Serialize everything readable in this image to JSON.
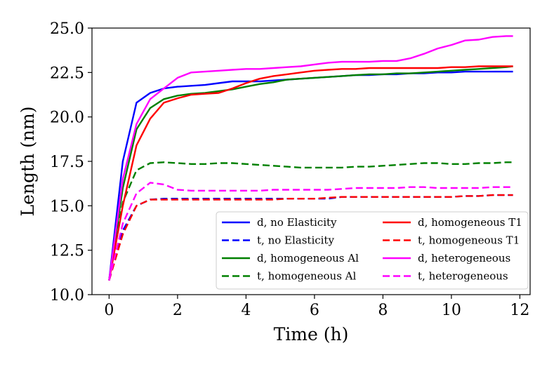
{
  "chart_data": {
    "type": "line",
    "title": "",
    "xlabel": "Time (h)",
    "ylabel": "Length (nm)",
    "xlim": [
      -0.5,
      12.3
    ],
    "ylim": [
      10.0,
      25.0
    ],
    "xticks": [
      0,
      2,
      4,
      6,
      8,
      10,
      12
    ],
    "xtick_labels": [
      "0",
      "2",
      "4",
      "6",
      "8",
      "10",
      "12"
    ],
    "yticks": [
      10.0,
      12.5,
      15.0,
      17.5,
      20.0,
      22.5,
      25.0
    ],
    "ytick_labels": [
      "10.0",
      "12.5",
      "15.0",
      "17.5",
      "20.0",
      "22.5",
      "25.0"
    ],
    "grid": false,
    "legend_position": "bottom-right",
    "x": [
      0,
      0.4,
      0.8,
      1.2,
      1.6,
      2.0,
      2.4,
      2.8,
      3.2,
      3.6,
      4.0,
      4.4,
      4.8,
      5.2,
      5.6,
      6.0,
      6.4,
      6.8,
      7.2,
      7.6,
      8.0,
      8.4,
      8.8,
      9.2,
      9.6,
      10.0,
      10.4,
      10.8,
      11.2,
      11.6,
      11.8
    ],
    "series": [
      {
        "name": "d, no Elasticity",
        "color": "#0000ff",
        "dash": "solid",
        "values": [
          10.8,
          17.5,
          20.8,
          21.35,
          21.6,
          21.7,
          21.75,
          21.8,
          21.9,
          22.0,
          22.0,
          22.0,
          22.05,
          22.1,
          22.15,
          22.2,
          22.25,
          22.3,
          22.35,
          22.35,
          22.4,
          22.4,
          22.45,
          22.45,
          22.5,
          22.5,
          22.55,
          22.55,
          22.55,
          22.55,
          22.55
        ]
      },
      {
        "name": "t, no Elasticity",
        "color": "#0000ff",
        "dash": "dashed",
        "values": [
          10.8,
          13.6,
          15.0,
          15.35,
          15.4,
          15.4,
          15.4,
          15.4,
          15.4,
          15.4,
          15.4,
          15.4,
          15.4,
          15.4,
          15.4,
          15.4,
          15.4,
          15.5,
          15.5,
          15.5,
          15.5,
          15.5,
          15.5,
          15.5,
          15.5,
          15.5,
          15.55,
          15.55,
          15.6,
          15.6,
          15.6
        ]
      },
      {
        "name": "d, homogeneous Al",
        "color": "#008000",
        "dash": "solid",
        "values": [
          10.8,
          16.0,
          19.3,
          20.5,
          21.0,
          21.2,
          21.3,
          21.35,
          21.45,
          21.55,
          21.7,
          21.85,
          21.95,
          22.1,
          22.15,
          22.2,
          22.25,
          22.3,
          22.35,
          22.4,
          22.4,
          22.45,
          22.45,
          22.5,
          22.55,
          22.6,
          22.65,
          22.7,
          22.75,
          22.8,
          22.85
        ]
      },
      {
        "name": "t, homogeneous Al",
        "color": "#008000",
        "dash": "dashed",
        "values": [
          10.8,
          15.2,
          17.0,
          17.4,
          17.45,
          17.4,
          17.35,
          17.35,
          17.4,
          17.4,
          17.35,
          17.3,
          17.25,
          17.2,
          17.15,
          17.15,
          17.15,
          17.15,
          17.2,
          17.2,
          17.25,
          17.3,
          17.35,
          17.4,
          17.4,
          17.35,
          17.35,
          17.4,
          17.4,
          17.45,
          17.45
        ]
      },
      {
        "name": "d, homogeneous T1",
        "color": "#ff0000",
        "dash": "solid",
        "values": [
          10.8,
          15.0,
          18.4,
          19.9,
          20.8,
          21.05,
          21.25,
          21.3,
          21.35,
          21.6,
          21.9,
          22.15,
          22.3,
          22.4,
          22.5,
          22.6,
          22.65,
          22.7,
          22.7,
          22.75,
          22.75,
          22.75,
          22.75,
          22.75,
          22.75,
          22.8,
          22.8,
          22.85,
          22.85,
          22.85,
          22.85
        ]
      },
      {
        "name": "t, homogeneous T1",
        "color": "#ff0000",
        "dash": "dashed",
        "values": [
          10.8,
          13.4,
          15.0,
          15.35,
          15.35,
          15.35,
          15.35,
          15.35,
          15.35,
          15.35,
          15.35,
          15.35,
          15.35,
          15.4,
          15.4,
          15.4,
          15.45,
          15.5,
          15.5,
          15.5,
          15.5,
          15.5,
          15.5,
          15.5,
          15.5,
          15.5,
          15.55,
          15.55,
          15.6,
          15.6,
          15.6
        ]
      },
      {
        "name": "d, heterogeneous",
        "color": "#ff00ff",
        "dash": "solid",
        "values": [
          10.8,
          16.5,
          19.6,
          21.0,
          21.6,
          22.2,
          22.5,
          22.55,
          22.6,
          22.65,
          22.7,
          22.7,
          22.75,
          22.8,
          22.85,
          22.95,
          23.05,
          23.1,
          23.1,
          23.1,
          23.15,
          23.15,
          23.3,
          23.55,
          23.85,
          24.05,
          24.3,
          24.35,
          24.5,
          24.55,
          24.55
        ]
      },
      {
        "name": "t, heterogeneous",
        "color": "#ff00ff",
        "dash": "dashed",
        "values": [
          10.8,
          14.0,
          15.7,
          16.3,
          16.2,
          15.9,
          15.85,
          15.85,
          15.85,
          15.85,
          15.85,
          15.85,
          15.9,
          15.9,
          15.9,
          15.9,
          15.9,
          15.95,
          16.0,
          16.0,
          16.0,
          16.0,
          16.05,
          16.05,
          16.0,
          16.0,
          16.0,
          16.0,
          16.05,
          16.05,
          16.05
        ]
      }
    ]
  }
}
